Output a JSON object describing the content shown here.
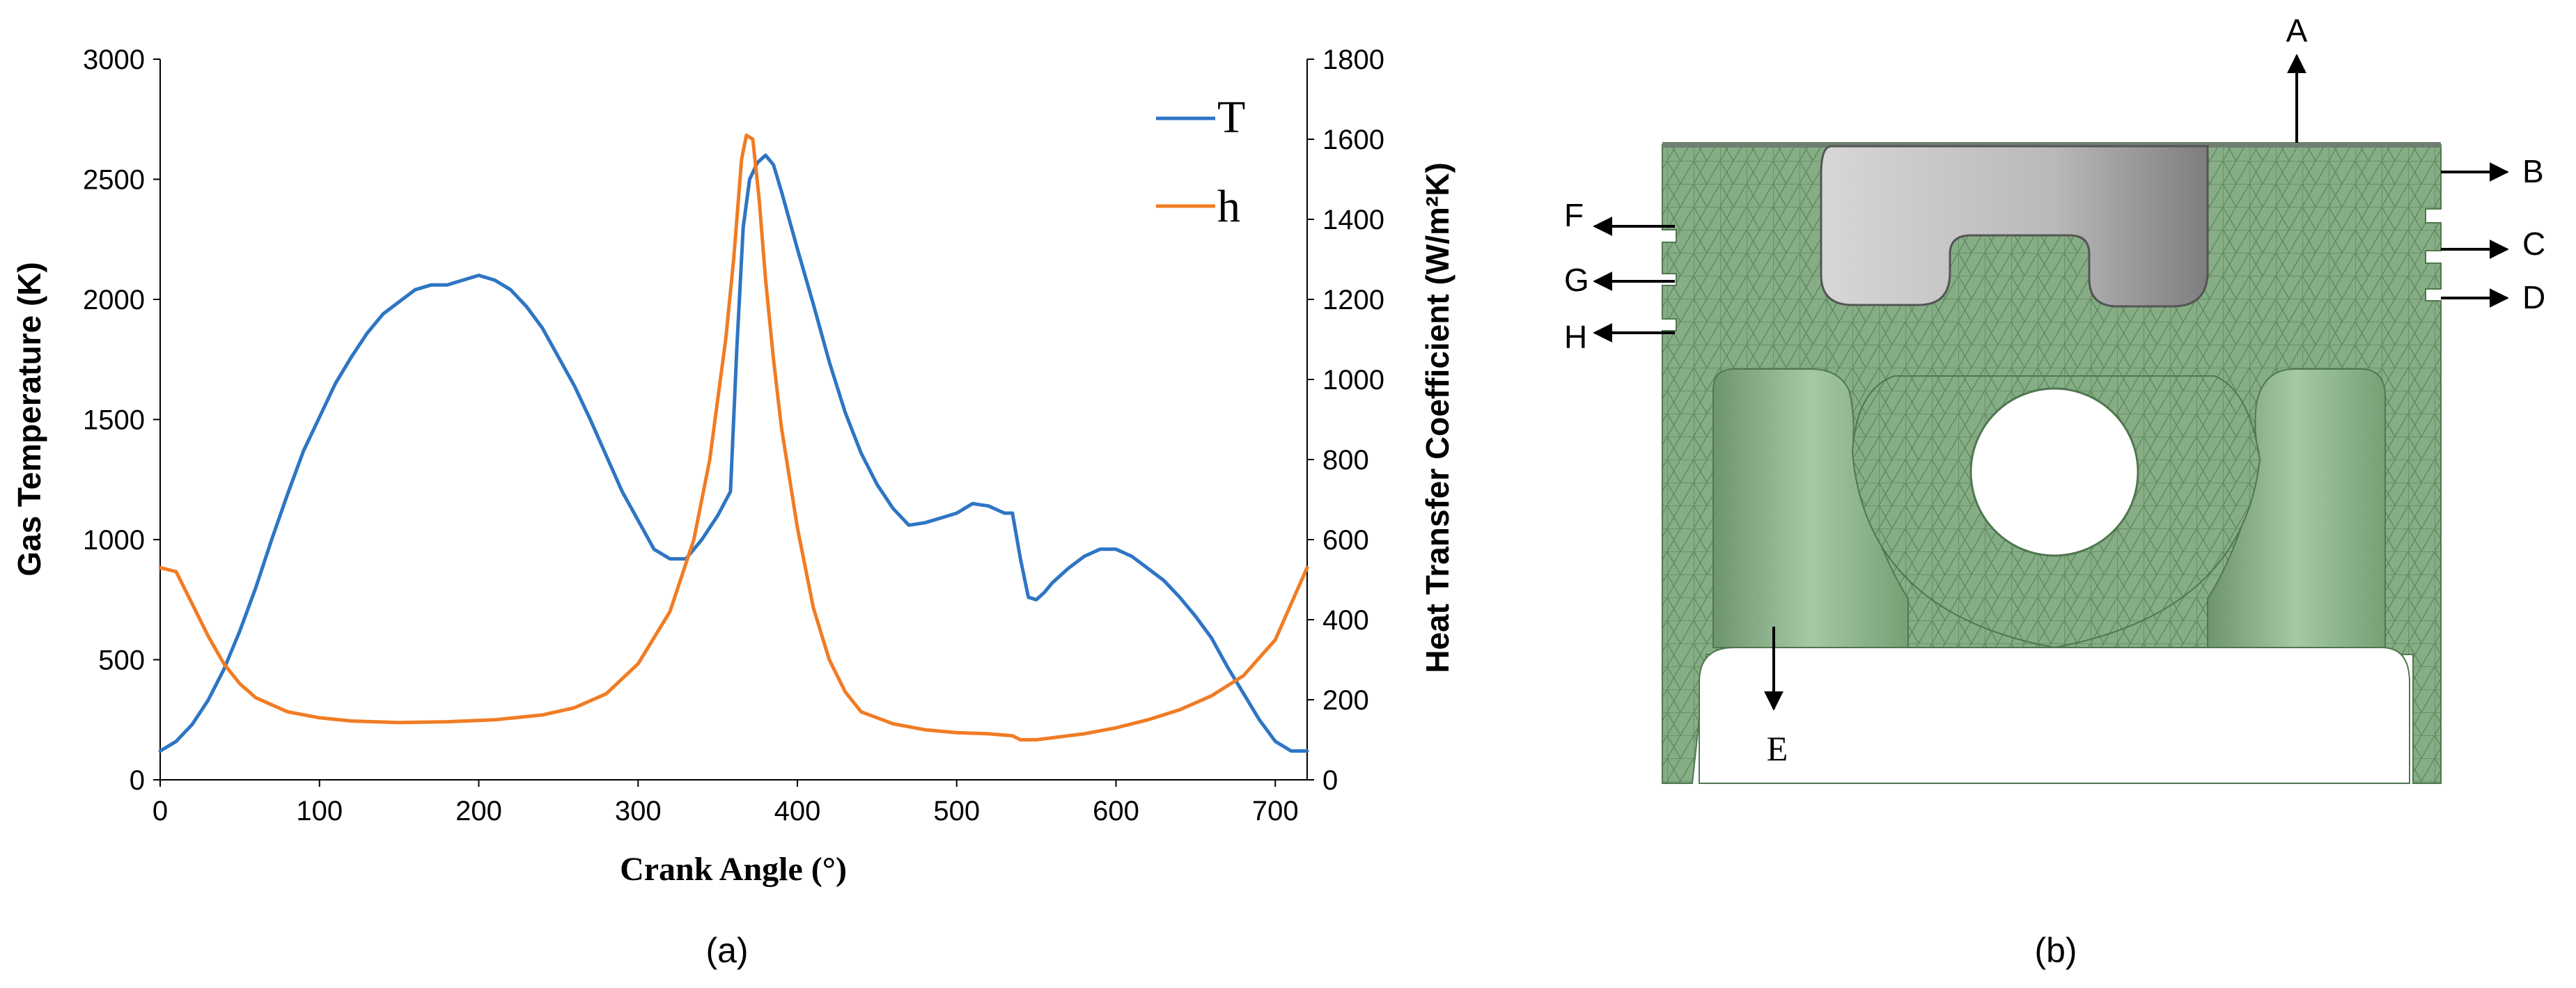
{
  "chart_data": {
    "type": "line",
    "title": "",
    "xlabel": "Crank Angle (°)",
    "ylabel": "Gas Temperature (K)",
    "y2label": "Heat Transfer Coefficient (W/m²K)",
    "xlim": [
      0,
      720
    ],
    "ylim": [
      0,
      3000
    ],
    "y2lim": [
      0,
      1800
    ],
    "xticks": [
      "0",
      "100",
      "200",
      "300",
      "400",
      "500",
      "600",
      "700"
    ],
    "yticks": [
      "0",
      "500",
      "1000",
      "1500",
      "2000",
      "2500",
      "3000"
    ],
    "y2ticks": [
      "0",
      "200",
      "400",
      "600",
      "800",
      "1000",
      "1200",
      "1400",
      "1600",
      "1800"
    ],
    "grid": false,
    "legend": "top-right",
    "series": [
      {
        "name": "T",
        "axis": "left",
        "color": "#2e75c4",
        "x": [
          0,
          10,
          20,
          30,
          40,
          50,
          60,
          70,
          80,
          90,
          100,
          110,
          120,
          130,
          140,
          150,
          160,
          170,
          180,
          190,
          200,
          210,
          220,
          230,
          240,
          250,
          260,
          270,
          280,
          290,
          300,
          310,
          320,
          330,
          340,
          350,
          358,
          362,
          366,
          370,
          375,
          380,
          385,
          390,
          400,
          410,
          420,
          430,
          440,
          450,
          460,
          470,
          480,
          490,
          500,
          510,
          520,
          530,
          535,
          540,
          545,
          550,
          555,
          560,
          570,
          580,
          590,
          600,
          610,
          620,
          630,
          640,
          650,
          660,
          670,
          680,
          690,
          700,
          710,
          720
        ],
        "y": [
          120,
          160,
          230,
          330,
          460,
          620,
          800,
          1000,
          1190,
          1370,
          1510,
          1650,
          1760,
          1860,
          1940,
          1990,
          2040,
          2060,
          2060,
          2080,
          2100,
          2080,
          2040,
          1970,
          1880,
          1760,
          1640,
          1500,
          1350,
          1200,
          1080,
          960,
          920,
          920,
          1000,
          1100,
          1200,
          1800,
          2300,
          2500,
          2570,
          2600,
          2560,
          2450,
          2210,
          1980,
          1740,
          1530,
          1360,
          1230,
          1130,
          1060,
          1070,
          1090,
          1110,
          1150,
          1140,
          1110,
          1110,
          920,
          760,
          750,
          780,
          820,
          880,
          930,
          960,
          960,
          930,
          880,
          830,
          760,
          680,
          590,
          470,
          360,
          250,
          160,
          120,
          120
        ]
      },
      {
        "name": "h",
        "axis": "right",
        "color": "#f07c24",
        "x": [
          0,
          10,
          20,
          30,
          40,
          50,
          60,
          80,
          100,
          120,
          150,
          180,
          210,
          240,
          260,
          280,
          300,
          320,
          335,
          345,
          350,
          355,
          360,
          365,
          368,
          372,
          376,
          380,
          385,
          390,
          400,
          410,
          420,
          430,
          440,
          460,
          480,
          500,
          520,
          535,
          540,
          545,
          550,
          560,
          580,
          600,
          620,
          640,
          660,
          680,
          700,
          710,
          720
        ],
        "y": [
          530,
          520,
          440,
          360,
          290,
          240,
          205,
          170,
          155,
          147,
          143,
          145,
          150,
          162,
          180,
          215,
          290,
          420,
          600,
          800,
          950,
          1100,
          1300,
          1550,
          1610,
          1600,
          1450,
          1250,
          1050,
          880,
          630,
          430,
          300,
          220,
          170,
          140,
          125,
          118,
          115,
          110,
          100,
          100,
          100,
          105,
          115,
          130,
          150,
          175,
          210,
          260,
          350,
          440,
          530
        ]
      }
    ]
  },
  "captions": {
    "left": "(a)",
    "right": "(b)"
  },
  "diagram": {
    "labels": {
      "A": "A",
      "B": "B",
      "C": "C",
      "D": "D",
      "E": "E",
      "F": "F",
      "G": "G",
      "H": "H"
    },
    "colors": {
      "mesh": "#7fa77f",
      "cavity": "#b8b8b8",
      "arrow": "#000000"
    }
  }
}
